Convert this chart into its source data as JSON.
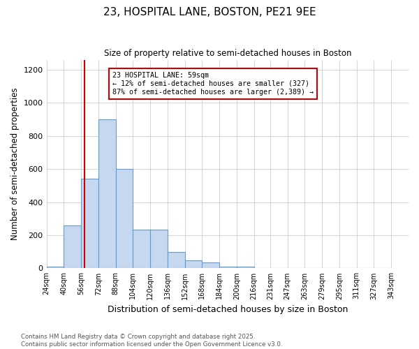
{
  "title": "23, HOSPITAL LANE, BOSTON, PE21 9EE",
  "subtitle": "Size of property relative to semi-detached houses in Boston",
  "bar_heights": [
    10,
    260,
    540,
    900,
    600,
    235,
    235,
    100,
    50,
    35,
    10,
    10,
    0,
    0,
    0,
    0,
    0,
    0,
    0,
    0
  ],
  "bin_labels": [
    "24sqm",
    "40sqm",
    "56sqm",
    "72sqm",
    "88sqm",
    "104sqm",
    "120sqm",
    "136sqm",
    "152sqm",
    "168sqm",
    "184sqm",
    "200sqm",
    "216sqm",
    "231sqm",
    "247sqm",
    "263sqm",
    "279sqm",
    "295sqm",
    "311sqm",
    "327sqm",
    "343sqm"
  ],
  "bin_edges": [
    24,
    40,
    56,
    72,
    88,
    104,
    120,
    136,
    152,
    168,
    184,
    200,
    216,
    231,
    247,
    263,
    279,
    295,
    311,
    327,
    343
  ],
  "bar_color": "#c5d8f0",
  "bar_edge_color": "#6699cc",
  "vline_x": 59,
  "vline_color": "#cc0000",
  "annotation_title": "23 HOSPITAL LANE: 59sqm",
  "annotation_line1": "← 12% of semi-detached houses are smaller (327)",
  "annotation_line2": "87% of semi-detached houses are larger (2,389) →",
  "annotation_box_color": "#cc0000",
  "xlabel": "Distribution of semi-detached houses by size in Boston",
  "ylabel": "Number of semi-detached properties",
  "ylim": [
    0,
    1260
  ],
  "yticks": [
    0,
    200,
    400,
    600,
    800,
    1000,
    1200
  ],
  "footer1": "Contains HM Land Registry data © Crown copyright and database right 2025.",
  "footer2": "Contains public sector information licensed under the Open Government Licence v3.0.",
  "bg_color": "#ffffff",
  "grid_color": "#cccccc"
}
